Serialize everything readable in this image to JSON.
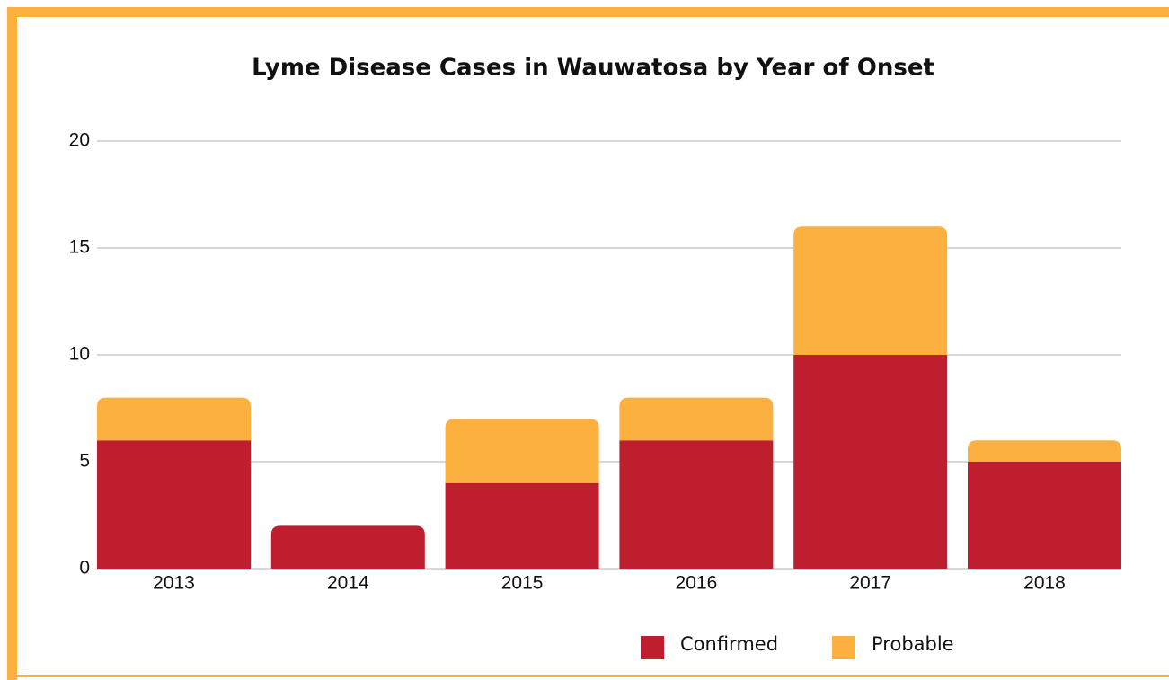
{
  "chart_data": {
    "type": "stacked_bar",
    "title": "Lyme Disease Cases in Wauwatosa by Year of Onset",
    "categories": [
      "2013",
      "2014",
      "2015",
      "2016",
      "2017",
      "2018"
    ],
    "series": [
      {
        "name": "Confirmed",
        "color": "#be1e2d",
        "values": [
          6,
          2,
          4,
          6,
          10,
          5
        ]
      },
      {
        "name": "Probable",
        "color": "#fbb040",
        "values": [
          2,
          0,
          3,
          2,
          6,
          1
        ]
      }
    ],
    "ylim": [
      0,
      20
    ],
    "yticks": [
      0,
      5,
      10,
      15,
      20
    ],
    "grid": true,
    "legend": "bottom"
  }
}
